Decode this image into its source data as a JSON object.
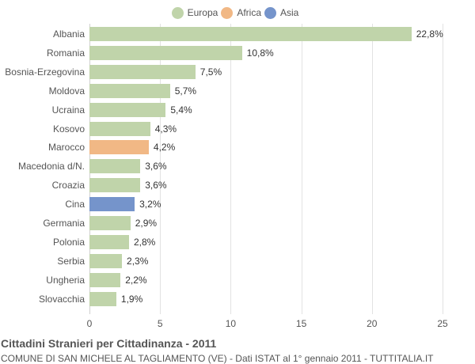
{
  "legend": [
    {
      "label": "Europa",
      "color": "#c0d4aa"
    },
    {
      "label": "Africa",
      "color": "#f1b885"
    },
    {
      "label": "Asia",
      "color": "#7594cb"
    }
  ],
  "title": "Cittadini Stranieri per Cittadinanza - 2011",
  "subtitle": "COMUNE DI SAN MICHELE AL TAGLIAMENTO (VE) - Dati ISTAT al 1° gennaio 2011 - TUTTITALIA.IT",
  "chart_data": {
    "type": "bar",
    "orientation": "horizontal",
    "title": "Cittadini Stranieri per Cittadinanza - 2011",
    "subtitle": "COMUNE DI SAN MICHELE AL TAGLIAMENTO (VE) - Dati ISTAT al 1° gennaio 2011 - TUTTITALIA.IT",
    "xlabel": "",
    "ylabel": "",
    "xlim": [
      0,
      25
    ],
    "xticks": [
      "0",
      "5",
      "10",
      "15",
      "20",
      "25"
    ],
    "grid": true,
    "legend_position": "top",
    "categories": [
      "Albania",
      "Romania",
      "Bosnia-Erzegovina",
      "Moldova",
      "Ucraina",
      "Kosovo",
      "Marocco",
      "Macedonia d/N.",
      "Croazia",
      "Cina",
      "Germania",
      "Polonia",
      "Serbia",
      "Ungheria",
      "Slovacchia"
    ],
    "values": [
      22.8,
      10.8,
      7.5,
      5.7,
      5.4,
      4.3,
      4.2,
      3.6,
      3.6,
      3.2,
      2.9,
      2.8,
      2.3,
      2.2,
      1.9
    ],
    "value_labels": [
      "22,8%",
      "10,8%",
      "7,5%",
      "5,7%",
      "5,4%",
      "4,3%",
      "4,2%",
      "3,6%",
      "3,6%",
      "3,2%",
      "2,9%",
      "2,8%",
      "2,3%",
      "2,2%",
      "1,9%"
    ],
    "groups": [
      "Europa",
      "Europa",
      "Europa",
      "Europa",
      "Europa",
      "Europa",
      "Africa",
      "Europa",
      "Europa",
      "Asia",
      "Europa",
      "Europa",
      "Europa",
      "Europa",
      "Europa"
    ]
  }
}
